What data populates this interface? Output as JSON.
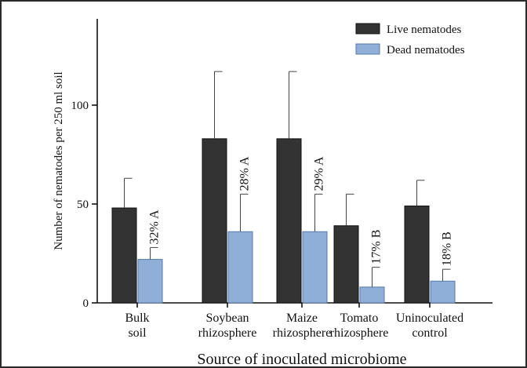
{
  "chart_data": {
    "type": "bar",
    "xlabel": "Source of inoculated microbiome",
    "ylabel": "Number of nematodes per 250 ml soil",
    "ylim": [
      0,
      140
    ],
    "yticks": [
      0,
      50,
      100
    ],
    "grid": false,
    "legend_position": "top-right",
    "categories": [
      [
        "Bulk",
        "soil"
      ],
      [
        "Soybean",
        "rhizosphere"
      ],
      [
        "Maize",
        "rhizosphere"
      ],
      [
        "Tomato",
        "rhizosphere"
      ],
      [
        "Uninoculated",
        "control"
      ]
    ],
    "series": [
      {
        "name": "Live nematodes",
        "color": "#333333",
        "values": [
          48,
          83,
          83,
          39,
          49
        ],
        "error_upper": [
          63,
          117,
          117,
          55,
          62
        ]
      },
      {
        "name": "Dead nematodes",
        "color": "#8fafd8",
        "values": [
          22,
          36,
          36,
          8,
          11
        ],
        "error_upper": [
          28,
          55,
          55,
          18,
          17
        ]
      }
    ],
    "annotations": [
      "32% A",
      "28% A",
      "29% A",
      "17% B",
      "18% B"
    ]
  }
}
